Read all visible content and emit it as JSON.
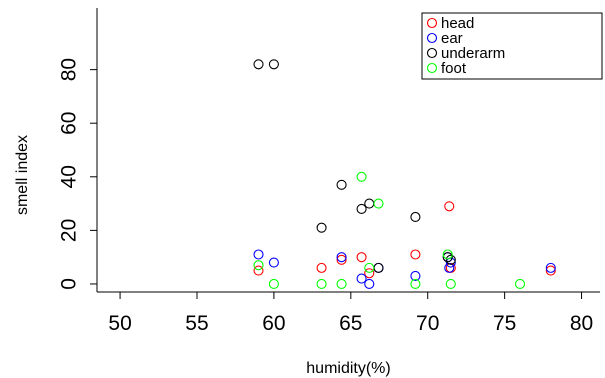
{
  "chart_data": {
    "type": "scatter",
    "title": "",
    "xlabel": "humidity(%)",
    "ylabel": "smell index",
    "xlim": [
      48.5,
      81.2
    ],
    "ylim": [
      -3,
      103
    ],
    "xticks": [
      50,
      55,
      60,
      65,
      70,
      75,
      80
    ],
    "yticks": [
      0,
      20,
      40,
      60,
      80
    ],
    "legend_position": "top-right",
    "series": [
      {
        "name": "head",
        "color": "#ff0000",
        "points": [
          [
            59,
            5
          ],
          [
            63.1,
            6
          ],
          [
            64.4,
            9
          ],
          [
            65.7,
            10
          ],
          [
            66.2,
            4
          ],
          [
            69.2,
            11
          ],
          [
            71.4,
            29
          ],
          [
            71.5,
            6
          ],
          [
            78,
            5
          ]
        ]
      },
      {
        "name": "ear",
        "color": "#0000ff",
        "points": [
          [
            59,
            11
          ],
          [
            60,
            8
          ],
          [
            64.4,
            10
          ],
          [
            65.7,
            2
          ],
          [
            66.2,
            0
          ],
          [
            66.8,
            6
          ],
          [
            69.2,
            3
          ],
          [
            71.3,
            10
          ],
          [
            71.4,
            6
          ],
          [
            71.5,
            8
          ],
          [
            78,
            6
          ]
        ]
      },
      {
        "name": "underarm",
        "color": "#000000",
        "points": [
          [
            59,
            82
          ],
          [
            60,
            82
          ],
          [
            63.1,
            21
          ],
          [
            64.4,
            37
          ],
          [
            65.7,
            28
          ],
          [
            66.2,
            30
          ],
          [
            66.8,
            6
          ],
          [
            69.2,
            25
          ],
          [
            71.3,
            10
          ],
          [
            71.5,
            9
          ]
        ]
      },
      {
        "name": "foot",
        "color": "#00ff00",
        "points": [
          [
            59,
            7
          ],
          [
            60,
            0
          ],
          [
            63.1,
            0
          ],
          [
            64.4,
            0
          ],
          [
            65.7,
            40
          ],
          [
            66.2,
            6
          ],
          [
            66.8,
            30
          ],
          [
            69.2,
            0
          ],
          [
            71.3,
            11
          ],
          [
            71.5,
            0
          ],
          [
            76,
            0
          ]
        ]
      }
    ]
  }
}
